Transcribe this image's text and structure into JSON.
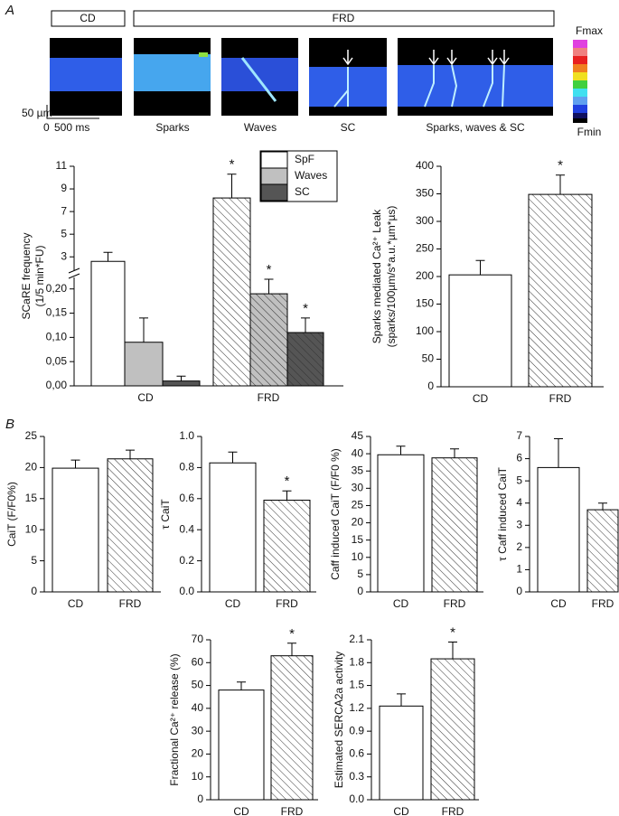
{
  "figure": {
    "panel_labels": [
      "A",
      "B"
    ],
    "groups": [
      "CD",
      "FRD"
    ],
    "image_labels": [
      "Sparks",
      "Waves",
      "SC",
      "Sparks, waves & SC"
    ],
    "scale": {
      "length": "50 µm",
      "time_start": "0",
      "time": "500 ms"
    },
    "colorbar": {
      "max": "Fmax",
      "min": "Fmin"
    }
  },
  "chart_data": [
    {
      "type": "bar",
      "ylabel": [
        "SCaRE frequency",
        "(1/5 min*FU)"
      ],
      "categories": [
        "CD",
        "FRD"
      ],
      "hatched": [
        false,
        true
      ],
      "series": [
        {
          "name": "SpF",
          "color": "#ffffff",
          "values": [
            2.6,
            8.2
          ],
          "errors": [
            0.8,
            2.1
          ],
          "significance": [
            null,
            "*"
          ]
        },
        {
          "name": "Waves",
          "color": "#c0c0c0",
          "values": [
            0.09,
            0.19
          ],
          "errors": [
            0.05,
            0.03
          ],
          "significance": [
            null,
            "*"
          ]
        },
        {
          "name": "SC",
          "color": "#555555",
          "values": [
            0.01,
            0.11
          ],
          "errors": [
            0.01,
            0.03
          ],
          "significance": [
            null,
            "*"
          ]
        }
      ],
      "ylim": [
        0,
        0.22
      ],
      "yticks": [
        {
          "value": 0,
          "label": "0,00"
        },
        {
          "value": 0.05,
          "label": "0,05"
        },
        {
          "value": 0.1,
          "label": "0,10"
        },
        {
          "value": 0.15,
          "label": "0,15"
        },
        {
          "value": 0.2,
          "label": "0,20"
        }
      ],
      "ylim_upper": [
        2.3,
        11
      ],
      "yticks_upper": [
        3,
        5,
        7,
        9,
        11
      ],
      "axis_break": true,
      "legend": "top-right"
    },
    {
      "type": "bar",
      "ylabel": [
        "Sparks mediated Ca²⁺ Leak",
        "(sparks/100µm/s*a.u.*µm*µs)"
      ],
      "categories": [
        "CD",
        "FRD"
      ],
      "hatched": [
        false,
        true
      ],
      "colors": [
        "#ffffff",
        "#ffffff"
      ],
      "values": [
        203,
        349
      ],
      "errors": [
        26,
        35
      ],
      "significance": [
        null,
        "*"
      ],
      "ylim": [
        0,
        400
      ],
      "yticks": [
        0,
        50,
        100,
        150,
        200,
        250,
        300,
        350,
        400
      ]
    },
    {
      "type": "bar",
      "ylabel": [
        "CaiT (F/F0%)"
      ],
      "categories": [
        "CD",
        "FRD"
      ],
      "hatched": [
        false,
        true
      ],
      "colors": [
        "#ffffff",
        "#ffffff"
      ],
      "values": [
        19.9,
        21.4
      ],
      "errors": [
        1.3,
        1.4
      ],
      "ylim": [
        0,
        25
      ],
      "yticks": [
        0,
        5,
        10,
        15,
        20,
        25
      ]
    },
    {
      "type": "bar",
      "ylabel": [
        "τ CaiT"
      ],
      "categories": [
        "CD",
        "FRD"
      ],
      "hatched": [
        false,
        true
      ],
      "colors": [
        "#ffffff",
        "#ffffff"
      ],
      "values": [
        0.83,
        0.59
      ],
      "errors": [
        0.07,
        0.06
      ],
      "significance": [
        null,
        "*"
      ],
      "ylim": [
        0,
        1
      ],
      "yticks": [
        {
          "value": 0,
          "label": "0.0"
        },
        0.2,
        0.4,
        0.6,
        0.8,
        {
          "value": 1,
          "label": "1.0"
        }
      ]
    },
    {
      "type": "bar",
      "ylabel": [
        "Caff induced CaiT (F/F0 %)"
      ],
      "categories": [
        "CD",
        "FRD"
      ],
      "hatched": [
        false,
        true
      ],
      "colors": [
        "#ffffff",
        "#ffffff"
      ],
      "values": [
        39.7,
        38.8
      ],
      "errors": [
        2.5,
        2.6
      ],
      "ylim": [
        0,
        45
      ],
      "yticks": [
        0,
        5,
        10,
        15,
        20,
        25,
        30,
        35,
        40,
        45
      ]
    },
    {
      "type": "bar",
      "ylabel": [
        "τ Caff induced CaiT"
      ],
      "categories": [
        "CD",
        "FRD"
      ],
      "hatched": [
        false,
        true
      ],
      "colors": [
        "#ffffff",
        "#ffffff"
      ],
      "values": [
        5.6,
        3.7
      ],
      "errors": [
        1.3,
        0.3
      ],
      "ylim": [
        0,
        7
      ],
      "yticks": [
        0,
        1,
        2,
        3,
        4,
        5,
        6,
        7
      ]
    },
    {
      "type": "bar",
      "ylabel": [
        "Fractional Ca²⁺ release (%)"
      ],
      "categories": [
        "CD",
        "FRD"
      ],
      "hatched": [
        false,
        true
      ],
      "colors": [
        "#ffffff",
        "#ffffff"
      ],
      "values": [
        48,
        63
      ],
      "errors": [
        3.5,
        5.5
      ],
      "significance": [
        null,
        "*"
      ],
      "ylim": [
        0,
        70
      ],
      "yticks": [
        0,
        10,
        20,
        30,
        40,
        50,
        60,
        70
      ]
    },
    {
      "type": "bar",
      "ylabel": [
        "Estimated SERCA2a activity"
      ],
      "categories": [
        "CD",
        "FRD"
      ],
      "hatched": [
        false,
        true
      ],
      "colors": [
        "#ffffff",
        "#ffffff"
      ],
      "values": [
        1.23,
        1.85
      ],
      "errors": [
        0.16,
        0.22
      ],
      "significance": [
        null,
        "*"
      ],
      "ylim": [
        0,
        2.1
      ],
      "yticks": [
        {
          "value": 0,
          "label": "0.0"
        },
        0.3,
        0.6,
        0.9,
        1.2,
        1.5,
        1.8,
        2.1
      ]
    }
  ]
}
